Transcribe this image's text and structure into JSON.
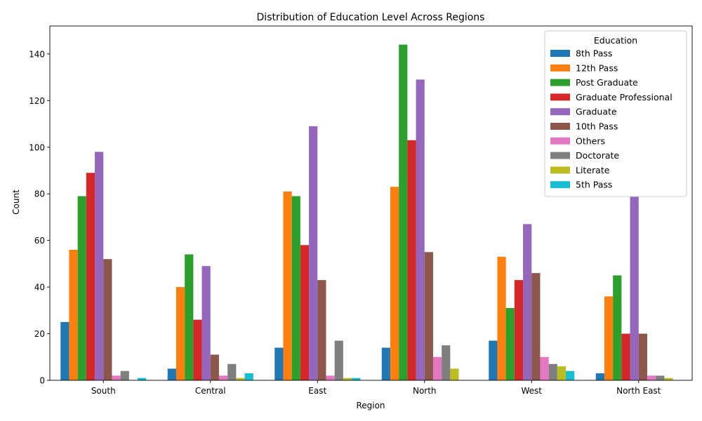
{
  "chart_data": {
    "type": "bar",
    "title": "Distribution of Education Level Across Regions",
    "xlabel": "Region",
    "ylabel": "Count",
    "ylim": [
      0,
      152
    ],
    "yticks": [
      0,
      20,
      40,
      60,
      80,
      100,
      120,
      140
    ],
    "grid": false,
    "legend": {
      "title": "Education",
      "placement": "top-right"
    },
    "categories": [
      "South",
      "Central",
      "East",
      "North",
      "West",
      "North East"
    ],
    "series": [
      {
        "name": "8th Pass",
        "color": "#1f77b4",
        "values": [
          25,
          5,
          14,
          14,
          17,
          3
        ]
      },
      {
        "name": "12th Pass",
        "color": "#ff7f0e",
        "values": [
          56,
          40,
          81,
          83,
          53,
          36
        ]
      },
      {
        "name": "Post Graduate",
        "color": "#2ca02c",
        "values": [
          79,
          54,
          79,
          144,
          31,
          45
        ]
      },
      {
        "name": "Graduate Professional",
        "color": "#d62728",
        "values": [
          89,
          26,
          58,
          103,
          43,
          20
        ]
      },
      {
        "name": "Graduate",
        "color": "#9467bd",
        "values": [
          98,
          49,
          109,
          129,
          67,
          79
        ]
      },
      {
        "name": "10th Pass",
        "color": "#8c564b",
        "values": [
          52,
          11,
          43,
          55,
          46,
          20
        ]
      },
      {
        "name": "Others",
        "color": "#e377c2",
        "values": [
          2,
          2,
          2,
          10,
          10,
          2
        ]
      },
      {
        "name": "Doctorate",
        "color": "#7f7f7f",
        "values": [
          4,
          7,
          17,
          15,
          7,
          2
        ]
      },
      {
        "name": "Literate",
        "color": "#bcbd22",
        "values": [
          0,
          1,
          1,
          5,
          6,
          1
        ]
      },
      {
        "name": "5th Pass",
        "color": "#17becf",
        "values": [
          1,
          3,
          1,
          0,
          4,
          0
        ]
      }
    ]
  }
}
